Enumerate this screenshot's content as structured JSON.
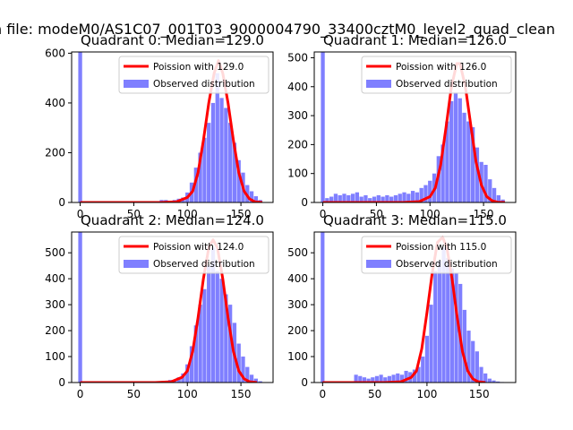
{
  "figure_title": "n file: modeM0/AS1C07_001T03_9000004790_33400cztM0_level2_quad_clean",
  "colors": {
    "poisson_line": "#ff0000",
    "observed_fill": "#7f7fff",
    "axis": "#000000",
    "background": "#ffffff"
  },
  "chart_data": [
    {
      "type": "bar",
      "title": "Quadrant 0: Median=129.0",
      "xlim": [
        -8,
        180
      ],
      "ylim": [
        0,
        605
      ],
      "xticks": [
        0,
        50,
        100,
        150
      ],
      "yticks": [
        0,
        200,
        400,
        600
      ],
      "legend_position": "upper right",
      "series": [
        {
          "name": "Poission with 129.0",
          "kind": "line",
          "x": [
            0,
            75,
            90,
            100,
            105,
            110,
            115,
            120,
            125,
            129,
            133,
            138,
            143,
            148,
            153,
            158,
            163,
            170
          ],
          "y": [
            0,
            0,
            3,
            20,
            45,
            120,
            250,
            400,
            520,
            570,
            520,
            400,
            250,
            120,
            45,
            14,
            3,
            0
          ]
        },
        {
          "name": "Observed distribution",
          "kind": "hist",
          "bin_width": 3.6,
          "x": [
            0,
            4,
            8,
            12,
            16,
            20,
            24,
            28,
            32,
            36,
            40,
            44,
            48,
            52,
            56,
            60,
            64,
            68,
            72,
            76,
            80,
            84,
            88,
            92,
            96,
            100,
            104,
            108,
            112,
            116,
            120,
            124,
            128,
            132,
            136,
            140,
            144,
            148,
            152,
            156,
            160,
            164,
            168,
            172
          ],
          "y": [
            605,
            5,
            5,
            5,
            5,
            5,
            5,
            5,
            5,
            5,
            5,
            5,
            5,
            5,
            5,
            5,
            5,
            5,
            5,
            10,
            10,
            5,
            10,
            15,
            20,
            40,
            80,
            140,
            200,
            260,
            320,
            400,
            520,
            420,
            380,
            320,
            240,
            170,
            120,
            70,
            45,
            25,
            10,
            0
          ]
        }
      ]
    },
    {
      "type": "bar",
      "title": "Quadrant 1: Median=126.0",
      "xlim": [
        -8,
        180
      ],
      "ylim": [
        0,
        520
      ],
      "xticks": [
        0,
        50,
        100,
        150
      ],
      "yticks": [
        0,
        100,
        200,
        300,
        400,
        500
      ],
      "legend_position": "upper right",
      "series": [
        {
          "name": "Poission with 126.0",
          "kind": "line",
          "x": [
            0,
            75,
            90,
            100,
            105,
            110,
            115,
            120,
            125,
            128,
            133,
            138,
            143,
            148,
            153,
            158,
            163,
            170
          ],
          "y": [
            0,
            0,
            3,
            20,
            50,
            130,
            260,
            400,
            480,
            480,
            400,
            270,
            140,
            60,
            20,
            6,
            1,
            0
          ]
        },
        {
          "name": "Observed distribution",
          "kind": "hist",
          "bin_width": 3.6,
          "x": [
            0,
            4,
            8,
            12,
            16,
            20,
            24,
            28,
            32,
            36,
            40,
            44,
            48,
            52,
            56,
            60,
            64,
            68,
            72,
            76,
            80,
            84,
            88,
            92,
            96,
            100,
            104,
            108,
            112,
            116,
            120,
            124,
            128,
            132,
            136,
            140,
            144,
            148,
            152,
            156,
            160,
            164,
            168,
            172
          ],
          "y": [
            520,
            15,
            20,
            30,
            25,
            30,
            25,
            30,
            35,
            20,
            25,
            15,
            20,
            25,
            20,
            25,
            20,
            25,
            30,
            35,
            30,
            40,
            35,
            50,
            60,
            75,
            100,
            160,
            200,
            280,
            350,
            380,
            360,
            310,
            280,
            260,
            190,
            140,
            130,
            80,
            50,
            25,
            10,
            0
          ]
        }
      ]
    },
    {
      "type": "bar",
      "title": "Quadrant 2: Median=124.0",
      "xlim": [
        -8,
        180
      ],
      "ylim": [
        0,
        580
      ],
      "xticks": [
        0,
        50,
        100,
        150
      ],
      "yticks": [
        0,
        100,
        200,
        300,
        400,
        500
      ],
      "legend_position": "upper right",
      "series": [
        {
          "name": "Poission with 124.0",
          "kind": "line",
          "x": [
            0,
            70,
            85,
            95,
            100,
            105,
            110,
            115,
            120,
            124,
            128,
            133,
            138,
            143,
            148,
            153,
            158,
            165
          ],
          "y": [
            0,
            0,
            3,
            20,
            45,
            120,
            250,
            400,
            520,
            550,
            520,
            400,
            250,
            120,
            45,
            14,
            3,
            0
          ]
        },
        {
          "name": "Observed distribution",
          "kind": "hist",
          "bin_width": 3.6,
          "x": [
            0,
            4,
            8,
            12,
            16,
            20,
            24,
            28,
            32,
            36,
            40,
            44,
            48,
            52,
            56,
            60,
            64,
            68,
            72,
            76,
            80,
            84,
            88,
            92,
            96,
            100,
            104,
            108,
            112,
            116,
            120,
            124,
            128,
            132,
            136,
            140,
            144,
            148,
            152,
            156,
            160,
            164,
            168,
            172
          ],
          "y": [
            580,
            2,
            2,
            2,
            2,
            2,
            2,
            2,
            2,
            2,
            2,
            2,
            2,
            2,
            2,
            2,
            2,
            2,
            2,
            5,
            5,
            10,
            10,
            20,
            35,
            70,
            140,
            220,
            300,
            360,
            450,
            520,
            430,
            400,
            340,
            300,
            230,
            150,
            100,
            60,
            30,
            15,
            5,
            0
          ]
        }
      ]
    },
    {
      "type": "bar",
      "title": "Quadrant 3: Median=115.0",
      "xlim": [
        -8,
        185
      ],
      "ylim": [
        0,
        580
      ],
      "xticks": [
        0,
        50,
        100,
        150
      ],
      "yticks": [
        0,
        100,
        200,
        300,
        400,
        500
      ],
      "legend_position": "upper right",
      "series": [
        {
          "name": "Poission with 115.0",
          "kind": "line",
          "x": [
            0,
            60,
            75,
            85,
            90,
            95,
            100,
            105,
            110,
            115,
            119,
            124,
            129,
            134,
            139,
            144,
            149,
            156
          ],
          "y": [
            0,
            0,
            3,
            20,
            45,
            130,
            270,
            420,
            540,
            560,
            520,
            400,
            250,
            120,
            45,
            14,
            3,
            0
          ]
        },
        {
          "name": "Observed distribution",
          "kind": "hist",
          "bin_width": 3.6,
          "x": [
            0,
            4,
            8,
            12,
            16,
            20,
            24,
            28,
            32,
            36,
            40,
            44,
            48,
            52,
            56,
            60,
            64,
            68,
            72,
            76,
            80,
            84,
            88,
            92,
            96,
            100,
            104,
            108,
            112,
            116,
            120,
            124,
            128,
            132,
            136,
            140,
            144,
            148,
            152,
            156,
            160,
            164,
            168,
            172,
            176
          ],
          "y": [
            580,
            2,
            2,
            2,
            2,
            2,
            2,
            2,
            30,
            25,
            20,
            15,
            20,
            25,
            30,
            20,
            25,
            30,
            35,
            30,
            45,
            40,
            50,
            60,
            100,
            180,
            300,
            430,
            470,
            520,
            480,
            440,
            420,
            380,
            280,
            200,
            160,
            120,
            60,
            35,
            15,
            8,
            4,
            2,
            0
          ]
        }
      ]
    }
  ]
}
